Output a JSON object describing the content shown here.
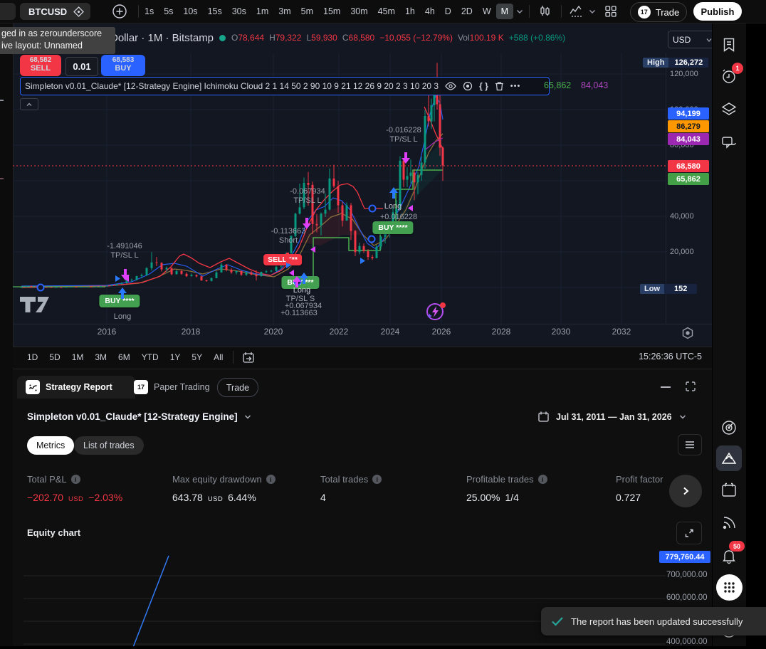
{
  "window": {
    "badge": "1"
  },
  "tooltip": {
    "line1": "ged in as zerounderscore",
    "line2": "ive layout: Unnamed"
  },
  "topbar": {
    "symbol": "BTCUSD",
    "timeframes": [
      "1s",
      "5s",
      "10s",
      "15s",
      "30s",
      "1m",
      "3m",
      "5m",
      "15m",
      "30m",
      "45m",
      "1h",
      "4h",
      "D",
      "2D",
      "W",
      "M"
    ],
    "trade": "Trade",
    "publish": "Publish"
  },
  "symbol_info": {
    "title": "Dollar · 1M · Bitstamp",
    "o": "O",
    "o_v": "78,644",
    "h": "H",
    "h_v": "79,322",
    "l": "L",
    "l_v": "59,930",
    "c": "C",
    "c_v": "68,580",
    "change": "−10,055 (−12.79%)",
    "vol": "Vol",
    "vol_v": "100.19 K",
    "vol_change": "+588 (+0.86%)",
    "currency": "USD"
  },
  "order": {
    "sell_price": "68,582",
    "sell": "SELL",
    "qty": "0.01",
    "buy_price": "68,583",
    "buy": "BUY"
  },
  "banner": {
    "text": "Simpleton v0.01_Claude* [12-Strategy Engine] Ichimoku Cloud 2 1 14 50 2 90 10 9 21 12 26 9 20 2 3 10 20 3",
    "braces": "{ }",
    "dots": "•••",
    "val_green": "65,862",
    "val_purple": "84,043"
  },
  "chart": {
    "high_label": "High",
    "high": "126,272",
    "low_label": "Low",
    "low": "152",
    "ticks": [
      "120,000",
      "100,000",
      "80,000",
      "40,000",
      "20,000"
    ],
    "labels": {
      "blue": "94,199",
      "orange": "86,279",
      "purple": "84,043",
      "red": "68,580",
      "green": "65,862"
    },
    "years": [
      "2016",
      "2018",
      "2020",
      "2022",
      "2024",
      "2026",
      "2028",
      "2030",
      "2032"
    ],
    "ann": {
      "a1v": "-1.491046",
      "a1l": "TP/SL L",
      "a2v": "-0.113663",
      "a2l": "Short",
      "a3v": "-0.067934",
      "a3l": "TP/SL L",
      "a4v": "-0.016228",
      "a4l": "TP/SL L",
      "buy1": "BUY ****",
      "buy1_sub": "Long",
      "sell1": "SELL ***",
      "buy2": "BUY ***",
      "buy2_sub": "Long",
      "buy2_l1": "TP/SL S",
      "buy2_l2": "+0.067934",
      "buy2_l3": "+0.113663",
      "long2": "Long",
      "long2_v": "+0.016228",
      "buy3": "BUY ****"
    },
    "candles": [
      [
        30,
        0.1,
        0.3,
        0.05,
        0.25
      ],
      [
        37,
        0.25,
        1.1,
        0.2,
        0.8
      ],
      [
        44,
        0.8,
        0.95,
        0.4,
        0.52
      ],
      [
        51,
        0.52,
        0.62,
        0.33,
        0.38
      ],
      [
        58,
        0.38,
        0.46,
        0.2,
        0.26
      ],
      [
        65,
        0.26,
        0.32,
        0.2,
        0.24
      ],
      [
        72,
        0.24,
        0.3,
        0.17,
        0.22
      ],
      [
        79,
        0.22,
        0.28,
        0.2,
        0.26
      ],
      [
        86,
        0.26,
        0.3,
        0.22,
        0.24
      ],
      [
        93,
        0.24,
        0.35,
        0.22,
        0.31
      ],
      [
        100,
        0.31,
        0.5,
        0.3,
        0.43
      ],
      [
        107,
        0.43,
        0.5,
        0.38,
        0.42
      ],
      [
        114,
        0.42,
        0.5,
        0.36,
        0.46
      ],
      [
        121,
        0.46,
        0.55,
        0.42,
        0.5
      ],
      [
        128,
        0.5,
        0.58,
        0.44,
        0.47
      ],
      [
        135,
        0.47,
        0.62,
        0.45,
        0.6
      ],
      [
        142,
        0.6,
        0.8,
        0.55,
        0.75
      ],
      [
        150,
        0.75,
        1,
        0.7,
        0.96
      ],
      [
        157,
        0.96,
        1.25,
        0.88,
        1.2
      ],
      [
        164,
        1.2,
        2.1,
        1.1,
        2
      ],
      [
        171,
        2,
        2.95,
        1.75,
        2.5
      ],
      [
        178,
        2.5,
        4.1,
        2.2,
        4
      ],
      [
        185,
        4,
        5,
        3.2,
        4.4
      ],
      [
        192,
        4.4,
        6.6,
        3.9,
        6.4
      ],
      [
        199,
        6.4,
        7.8,
        5.2,
        7
      ],
      [
        206,
        7,
        11.4,
        6.5,
        10.9
      ],
      [
        213,
        10.9,
        19.9,
        9.5,
        14.1
      ],
      [
        220,
        14.1,
        17.2,
        12,
        13.9
      ],
      [
        227,
        13.9,
        14.2,
        9,
        10.2
      ],
      [
        234,
        10.2,
        11.8,
        8.8,
        11
      ],
      [
        241,
        11,
        11.1,
        6.9,
        7.5
      ],
      [
        248,
        7.5,
        9.9,
        7.2,
        9.2
      ],
      [
        255,
        9.2,
        10,
        7.1,
        7.7
      ],
      [
        262,
        7.7,
        8.5,
        5.9,
        6.4
      ],
      [
        269,
        6.4,
        7.8,
        6.1,
        7
      ],
      [
        276,
        7,
        7.4,
        5.7,
        6.3
      ],
      [
        283,
        6.3,
        6.6,
        3.8,
        4
      ],
      [
        290,
        4,
        4.4,
        3.2,
        3.7
      ],
      [
        297,
        3.7,
        5.6,
        3.4,
        5.3
      ],
      [
        304,
        5.3,
        9.1,
        5.2,
        8.5
      ],
      [
        311,
        8.5,
        13.8,
        8.4,
        12.9
      ],
      [
        318,
        12.9,
        13.2,
        9.1,
        10
      ],
      [
        325,
        10,
        10.9,
        7.7,
        8.5
      ],
      [
        332,
        8.5,
        9.5,
        7.3,
        9.2
      ],
      [
        339,
        9.2,
        9.6,
        6.5,
        7.2
      ],
      [
        346,
        7.2,
        9.2,
        6.4,
        8.5
      ],
      [
        353,
        8.5,
        9.2,
        6.9,
        7.3
      ],
      [
        360,
        7.3,
        9.6,
        3.9,
        6.4
      ],
      [
        367,
        6.4,
        9,
        6.1,
        8.8
      ],
      [
        374,
        8.8,
        9.7,
        8.1,
        9.1
      ],
      [
        381,
        9.1,
        9.9,
        8.6,
        9.4
      ],
      [
        388,
        9.4,
        12.5,
        8.9,
        11.7
      ],
      [
        395,
        11.7,
        14.1,
        10.5,
        13.8
      ],
      [
        402,
        13.8,
        19.5,
        13.4,
        19.4
      ],
      [
        409,
        19.4,
        29.3,
        17.6,
        29
      ],
      [
        415,
        29,
        42,
        28.2,
        41.5
      ],
      [
        421,
        41.5,
        58.4,
        41,
        45.1
      ],
      [
        427,
        45.1,
        61.8,
        44,
        58.8
      ],
      [
        433,
        58.8,
        64.9,
        46,
        57.7
      ],
      [
        439,
        57.7,
        59.5,
        30,
        35.7
      ],
      [
        445,
        35.7,
        41.3,
        31,
        35
      ],
      [
        451,
        35,
        42.2,
        29.3,
        41.5
      ],
      [
        457,
        41.5,
        52.9,
        39.6,
        43.8
      ],
      [
        463,
        43.8,
        66.9,
        43.3,
        61.3
      ],
      [
        469,
        61.3,
        69,
        56,
        57
      ],
      [
        475,
        57,
        59.9,
        42,
        46.2
      ],
      [
        481,
        46.2,
        48.2,
        34.3,
        37.6
      ],
      [
        487,
        37.6,
        47.8,
        37.5,
        46.2
      ],
      [
        493,
        46.2,
        47.5,
        26.7,
        31.8
      ],
      [
        499,
        31.8,
        32.3,
        17.6,
        19.9
      ],
      [
        505,
        19.9,
        25.2,
        18.6,
        23.3
      ],
      [
        511,
        23.3,
        24.7,
        19.5,
        20.5
      ],
      [
        517,
        20.5,
        21.5,
        15.5,
        17.2
      ],
      [
        523,
        17.2,
        18.3,
        15.5,
        16.5
      ],
      [
        529,
        16.5,
        23.9,
        16.4,
        23.1
      ],
      [
        535,
        23.1,
        29.2,
        21.4,
        28.5
      ],
      [
        541,
        28.5,
        31.3,
        24.8,
        30.5
      ],
      [
        547,
        30.5,
        35.9,
        28.1,
        34.7
      ],
      [
        552,
        34.7,
        45,
        34.5,
        42.3
      ],
      [
        557,
        42.3,
        49,
        38.5,
        44.2
      ],
      [
        562,
        44.2,
        73.8,
        44,
        71.3
      ],
      [
        567,
        71.3,
        72,
        56.5,
        60.6
      ],
      [
        572,
        60.6,
        67.5,
        56.5,
        62.7
      ],
      [
        577,
        62.7,
        71.9,
        58.4,
        64.6
      ],
      [
        582,
        64.6,
        66.5,
        49.1,
        59.1
      ],
      [
        587,
        59.1,
        65,
        52.5,
        63.3
      ],
      [
        592,
        63.3,
        73.6,
        60,
        70.2
      ],
      [
        597,
        70.2,
        99.8,
        66.8,
        96.4
      ],
      [
        602,
        96.4,
        108.3,
        90.5,
        93.4
      ],
      [
        606,
        93.4,
        106.1,
        89.2,
        102.4
      ],
      [
        610,
        102.4,
        117,
        93.3,
        111
      ],
      [
        614,
        111,
        126.3,
        100,
        103
      ],
      [
        618,
        103,
        112,
        74,
        78.6
      ],
      [
        622,
        78.6,
        79.3,
        59.9,
        68.6
      ]
    ]
  },
  "bottom": {
    "ranges": [
      "1D",
      "5D",
      "1M",
      "3M",
      "6M",
      "YTD",
      "1Y",
      "5Y",
      "All"
    ],
    "clock": "15:26:36 UTC-5"
  },
  "report": {
    "tab1": "Strategy Report",
    "tab2": "Paper Trading",
    "trade_tab": "Trade",
    "strategy": "Simpleton v0.01_Claude* [12-Strategy Engine]",
    "range": "Jul 31, 2011 — Jan 31, 2026",
    "btn_metrics": "Metrics",
    "btn_trades": "List of trades",
    "m": [
      {
        "label": "Total P&L",
        "v1": "−202.70",
        "unit": "USD",
        "v2": "−2.03%"
      },
      {
        "label": "Max equity drawdown",
        "v1": "643.78",
        "unit": "USD",
        "v2": "6.44%"
      },
      {
        "label": "Total trades",
        "v1": "4",
        "unit": "",
        "v2": ""
      },
      {
        "label": "Profitable trades",
        "v1": "25.00%",
        "unit": "",
        "v2": "1/4"
      },
      {
        "label": "Profit factor",
        "v1": "0.727",
        "unit": "",
        "v2": ""
      }
    ],
    "equity_title": "Equity chart",
    "eq": {
      "current": "779,760.44",
      "l1": "700,000.00",
      "l2": "600,000.00",
      "l3": "400,000.00"
    }
  },
  "toast": {
    "msg": "The report has been updated successfully"
  },
  "sidebar": {
    "alert_badge": "1",
    "bell_badge": "50"
  }
}
